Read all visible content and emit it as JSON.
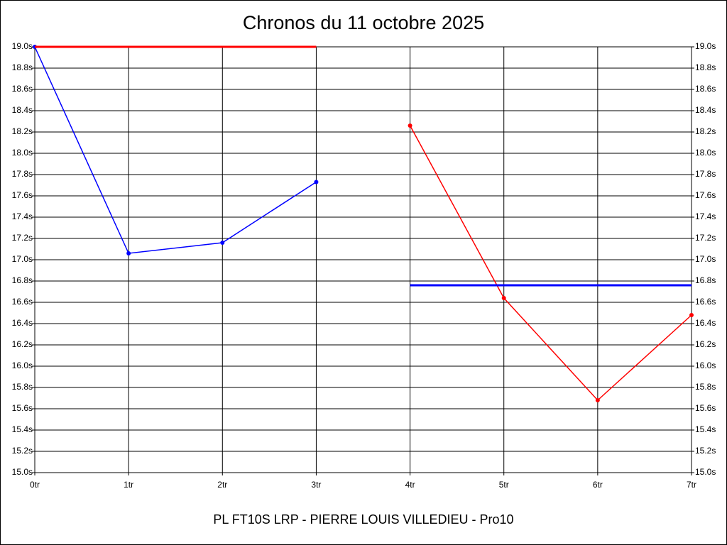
{
  "chart_data": {
    "type": "line",
    "title": "Chronos du 11 octobre 2025",
    "xlabel": "PL FT10S LRP - PIERRE LOUIS VILLEDIEU - Pro10",
    "categories": [
      "0tr",
      "1tr",
      "2tr",
      "3tr",
      "4tr",
      "5tr",
      "6tr",
      "7tr"
    ],
    "series": [
      {
        "color": "#0000ff",
        "markers": true,
        "width": 1.5,
        "values": [
          19.0,
          17.06,
          17.16,
          17.73,
          null,
          null,
          null,
          null
        ]
      },
      {
        "color": "#ff0000",
        "markers": true,
        "width": 1.5,
        "values": [
          null,
          null,
          null,
          null,
          18.26,
          16.64,
          15.68,
          16.48
        ]
      },
      {
        "color": "#ff0000",
        "markers": false,
        "width": 3,
        "values": [
          19.0,
          19.0,
          19.0,
          19.0,
          null,
          null,
          null,
          null
        ]
      },
      {
        "color": "#0000ff",
        "markers": false,
        "width": 3,
        "values": [
          null,
          null,
          null,
          null,
          16.76,
          16.76,
          16.76,
          16.76
        ]
      }
    ],
    "ylim": [
      15.0,
      19.0
    ],
    "yticks": [
      {
        "value": 15.0,
        "label": "15.0s"
      },
      {
        "value": 15.2,
        "label": "15.2s"
      },
      {
        "value": 15.4,
        "label": "15.4s"
      },
      {
        "value": 15.6,
        "label": "15.6s"
      },
      {
        "value": 15.8,
        "label": "15.8s"
      },
      {
        "value": 16.0,
        "label": "16.0s"
      },
      {
        "value": 16.2,
        "label": "16.2s"
      },
      {
        "value": 16.4,
        "label": "16.4s"
      },
      {
        "value": 16.6,
        "label": "16.6s"
      },
      {
        "value": 16.8,
        "label": "16.8s"
      },
      {
        "value": 17.0,
        "label": "17.0s"
      },
      {
        "value": 17.2,
        "label": "17.2s"
      },
      {
        "value": 17.4,
        "label": "17.4s"
      },
      {
        "value": 17.6,
        "label": "17.6s"
      },
      {
        "value": 17.8,
        "label": "17.8s"
      },
      {
        "value": 18.0,
        "label": "18.0s"
      },
      {
        "value": 18.2,
        "label": "18.2s"
      },
      {
        "value": 18.4,
        "label": "18.4s"
      },
      {
        "value": 18.6,
        "label": "18.6s"
      },
      {
        "value": 18.8,
        "label": "18.8s"
      },
      {
        "value": 19.0,
        "label": "19.0s"
      }
    ],
    "grid": true
  }
}
